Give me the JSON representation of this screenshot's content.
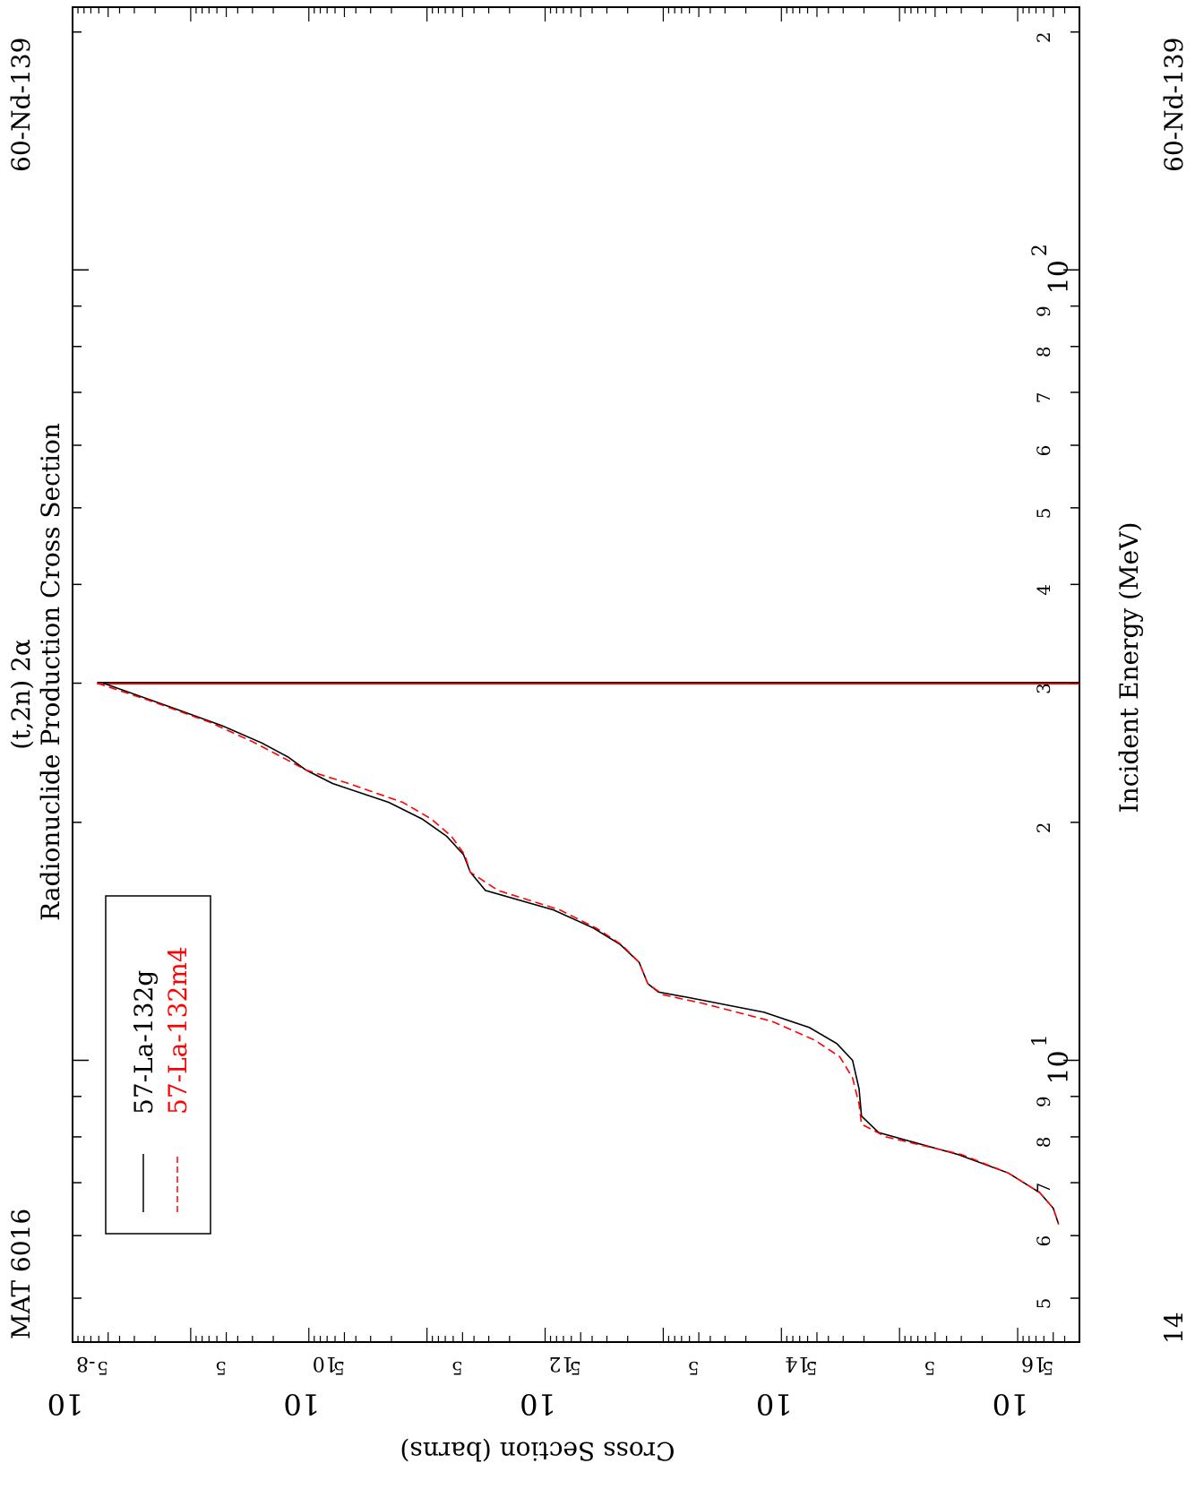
{
  "header": {
    "title_reaction": "(t,2n) 2α",
    "title_main": "Radionuclide Production Cross Section",
    "material": "MAT 6016",
    "target": "60-Nd-139",
    "projectile_z": "14"
  },
  "axes": {
    "xlabel": "Incident Energy (MeV)",
    "ylabel": "Cross Section (barns)"
  },
  "legend": {
    "entries": [
      {
        "label": "57-La-132g",
        "color": "#000000",
        "style": "solid"
      },
      {
        "label": "57-La-132m4",
        "color": "#ff0000",
        "style": "dashed"
      }
    ]
  },
  "chart_data": {
    "type": "line",
    "orientation": "rotated-90-cw",
    "title": "(t,2n) 2α Radionuclide Production Cross Section",
    "xlabel": "Incident Energy (MeV)",
    "ylabel": "Cross Section (barns)",
    "x_scale": "log",
    "y_scale": "log",
    "xlim": [
      4.4,
      215
    ],
    "ylim": [
      1e-08,
      3e-17
    ],
    "x_ticks_major": [
      {
        "value": 10,
        "label": "10",
        "exp": "1"
      },
      {
        "value": 100,
        "label": "10",
        "exp": "2"
      }
    ],
    "x_ticks_minor_labeled": [
      {
        "value": 5,
        "label": "5"
      },
      {
        "value": 6,
        "label": "6"
      },
      {
        "value": 7,
        "label": "7"
      },
      {
        "value": 8,
        "label": "8"
      },
      {
        "value": 9,
        "label": "9"
      },
      {
        "value": 20,
        "label": "2"
      },
      {
        "value": 30,
        "label": "3"
      },
      {
        "value": 40,
        "label": "4"
      },
      {
        "value": 50,
        "label": "5"
      },
      {
        "value": 60,
        "label": "6"
      },
      {
        "value": 70,
        "label": "7"
      },
      {
        "value": 80,
        "label": "8"
      },
      {
        "value": 90,
        "label": "9"
      },
      {
        "value": 200,
        "label": "2"
      }
    ],
    "y_ticks_major": [
      {
        "value": 1e-08,
        "label": "10",
        "exp": "-8"
      },
      {
        "value": 1e-10,
        "label": "10",
        "exp": "-10"
      },
      {
        "value": 1e-12,
        "label": "10",
        "exp": "-12"
      },
      {
        "value": 1e-14,
        "label": "10",
        "exp": "-14"
      },
      {
        "value": 1e-16,
        "label": "10",
        "exp": "-16"
      }
    ],
    "y_ticks_five": [
      5e-09,
      5e-10,
      5e-11,
      5e-12,
      5e-13,
      5e-14,
      5e-15,
      5e-16,
      5e-17
    ],
    "series": [
      {
        "name": "57-La-132g",
        "color": "#000000",
        "dash": "",
        "points": [
          [
            30,
            5.5e-09
          ],
          [
            28,
            1.5e-09
          ],
          [
            26.5,
            5.4e-10
          ],
          [
            25.2,
            2.5e-10
          ],
          [
            24.2,
            1.5e-10
          ],
          [
            23.3,
            1.06e-10
          ],
          [
            22.4,
            6.3e-11
          ],
          [
            21.2,
            2.1e-11
          ],
          [
            20.2,
            1.1e-11
          ],
          [
            19.2,
            6.8e-12
          ],
          [
            18.2,
            4.9e-12
          ],
          [
            17.3,
            4.3e-12
          ],
          [
            16.4,
            3.2e-12
          ],
          [
            15.5,
            8.5e-13
          ],
          [
            14.7,
            3.9e-13
          ],
          [
            14.0,
            2.3e-13
          ],
          [
            13.3,
            1.6e-13
          ],
          [
            12.5,
            1.35e-13
          ],
          [
            12.2,
            1.1e-13
          ],
          [
            12.0,
            6e-14
          ],
          [
            11.5,
            1.4e-14
          ],
          [
            11.0,
            5.8e-15
          ],
          [
            10.5,
            3.4e-15
          ],
          [
            10.0,
            2.5e-15
          ],
          [
            9.2,
            2.2e-15
          ],
          [
            8.5,
            2.1e-15
          ],
          [
            8.1,
            1.5e-15
          ],
          [
            7.6,
            3.2e-16
          ],
          [
            7.2,
            1.2e-16
          ],
          [
            6.8,
            6.5e-17
          ],
          [
            6.5,
            5e-17
          ],
          [
            6.2,
            4.5e-17
          ]
        ]
      },
      {
        "name": "57-La-132m4",
        "color": "#ff0000",
        "dash": "9,5",
        "points": [
          [
            30,
            6.2e-09
          ],
          [
            28.5,
            2.2e-09
          ],
          [
            26.8,
            7e-10
          ],
          [
            25.3,
            3e-10
          ],
          [
            24.2,
            1.7e-10
          ],
          [
            23.3,
            1.06e-10
          ],
          [
            22.4,
            4.6e-11
          ],
          [
            21.2,
            1.6e-11
          ],
          [
            20.2,
            9.2e-12
          ],
          [
            19.2,
            6.2e-12
          ],
          [
            18.2,
            4.8e-12
          ],
          [
            17.3,
            4.3e-12
          ],
          [
            16.4,
            2.5e-12
          ],
          [
            15.5,
            7.5e-13
          ],
          [
            14.7,
            3.7e-13
          ],
          [
            14.0,
            2.25e-13
          ],
          [
            13.3,
            1.6e-13
          ],
          [
            12.5,
            1.35e-13
          ],
          [
            12.1,
            1e-13
          ],
          [
            11.8,
            4.6e-14
          ],
          [
            11.2,
            1.2e-14
          ],
          [
            10.6,
            5.2e-15
          ],
          [
            10.1,
            3.2e-15
          ],
          [
            9.5,
            2.5e-15
          ],
          [
            8.8,
            2.2e-15
          ],
          [
            8.3,
            2.1e-15
          ],
          [
            8.0,
            1.3e-15
          ],
          [
            7.6,
            3e-16
          ],
          [
            7.2,
            1.2e-16
          ],
          [
            6.8,
            6.5e-17
          ],
          [
            6.5,
            5e-17
          ],
          [
            6.2,
            4.5e-17
          ]
        ]
      }
    ],
    "threshold_lines": [
      {
        "x": 30,
        "y_from": 6.2e-09,
        "y_to": 3e-17,
        "colors": [
          "#000000",
          "#ff0000"
        ]
      }
    ],
    "legend_position": "bottom-left (rotated view)",
    "grid": false
  }
}
